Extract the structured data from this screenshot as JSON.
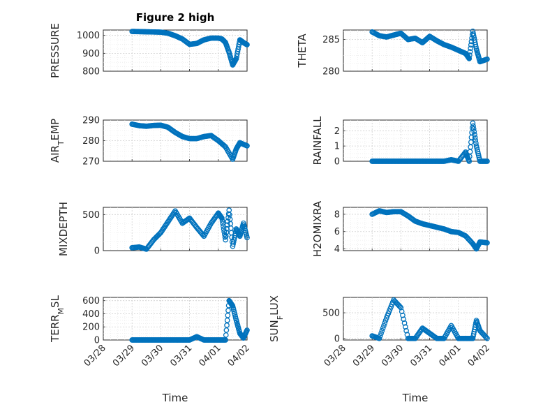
{
  "figure": {
    "title": "Figure 2 high",
    "x_ticks": [
      "03/28",
      "03/29",
      "03/30",
      "03/31",
      "04/01",
      "04/02"
    ],
    "xlabel": "Time",
    "marker_color": "#0072BD"
  },
  "chart_data": [
    {
      "type": "scatter",
      "name": "pressure",
      "ylabel": "PRESSURE",
      "ylabel_sub": [],
      "ylim": [
        800,
        1030
      ],
      "yticks": [
        800,
        900,
        1000
      ],
      "ytick_labels": [
        "800",
        "900",
        "1000"
      ],
      "show_xticklabels": false,
      "x": [
        "03/29 00:00",
        "03/29 06:00",
        "03/29 12:00",
        "03/29 18:00",
        "03/30 00:00",
        "03/30 06:00",
        "03/30 12:00",
        "03/30 18:00",
        "03/31 00:00",
        "03/31 06:00",
        "03/31 12:00",
        "03/31 18:00",
        "04/01 00:00",
        "04/01 03:00",
        "04/01 06:00",
        "04/01 09:00",
        "04/01 12:00",
        "04/01 15:00",
        "04/01 18:00",
        "04/01 21:00",
        "04/02 00:00"
      ],
      "y": [
        1022,
        1021,
        1020,
        1019,
        1018,
        1012,
        998,
        980,
        950,
        955,
        975,
        985,
        985,
        980,
        960,
        905,
        835,
        870,
        975,
        960,
        948
      ]
    },
    {
      "type": "scatter",
      "name": "theta",
      "ylabel": "THETA",
      "ylabel_sub": [],
      "ylim": [
        280,
        286.5
      ],
      "yticks": [
        280,
        285
      ],
      "ytick_labels": [
        "280",
        "285"
      ],
      "show_xticklabels": false,
      "x": [
        "03/29 00:00",
        "03/29 06:00",
        "03/29 12:00",
        "03/29 18:00",
        "03/30 00:00",
        "03/30 06:00",
        "03/30 12:00",
        "03/30 18:00",
        "03/31 00:00",
        "03/31 06:00",
        "03/31 12:00",
        "03/31 18:00",
        "04/01 00:00",
        "04/01 06:00",
        "04/01 09:00",
        "04/01 12:00",
        "04/01 15:00",
        "04/01 18:00",
        "04/02 00:00"
      ],
      "y": [
        286.2,
        285.6,
        285.4,
        285.7,
        286.0,
        285.0,
        285.2,
        284.5,
        285.5,
        284.8,
        284.2,
        283.8,
        283.3,
        282.8,
        282.0,
        286.3,
        283.5,
        281.5,
        281.9
      ]
    },
    {
      "type": "scatter",
      "name": "air-temp",
      "ylabel": "AIR",
      "ylabel_sub": [
        "T",
        "EMP"
      ],
      "ylim": [
        270,
        290
      ],
      "yticks": [
        270,
        280,
        290
      ],
      "ytick_labels": [
        "270",
        "280",
        "290"
      ],
      "show_xticklabels": false,
      "x": [
        "03/29 00:00",
        "03/29 06:00",
        "03/29 12:00",
        "03/29 18:00",
        "03/30 00:00",
        "03/30 06:00",
        "03/30 12:00",
        "03/30 18:00",
        "03/31 00:00",
        "03/31 06:00",
        "03/31 12:00",
        "03/31 18:00",
        "04/01 00:00",
        "04/01 06:00",
        "04/01 12:00",
        "04/01 15:00",
        "04/01 18:00",
        "04/02 00:00"
      ],
      "y": [
        288.0,
        287.3,
        287.0,
        287.4,
        287.5,
        286.5,
        284.0,
        282.0,
        281.0,
        281.0,
        282.0,
        282.5,
        280.0,
        277.0,
        271.0,
        276.0,
        279.0,
        277.5
      ]
    },
    {
      "type": "scatter",
      "name": "rainfall",
      "ylabel": "RAINFALL",
      "ylabel_sub": [],
      "ylim": [
        0,
        2.7
      ],
      "yticks": [
        0,
        1,
        2
      ],
      "ytick_labels": [
        "0",
        "1",
        "2"
      ],
      "show_xticklabels": false,
      "x": [
        "03/29 00:00",
        "03/29 06:00",
        "03/29 12:00",
        "03/29 18:00",
        "03/30 00:00",
        "03/30 06:00",
        "03/30 12:00",
        "03/30 18:00",
        "03/31 00:00",
        "03/31 06:00",
        "03/31 12:00",
        "03/31 18:00",
        "04/01 00:00",
        "04/01 06:00",
        "04/01 09:00",
        "04/01 12:00",
        "04/01 15:00",
        "04/01 18:00",
        "04/02 00:00"
      ],
      "y": [
        0,
        0,
        0,
        0,
        0,
        0,
        0,
        0,
        0,
        0,
        0,
        0.1,
        0,
        0.6,
        0,
        2.5,
        1.0,
        0,
        0
      ]
    },
    {
      "type": "scatter",
      "name": "mixdepth",
      "ylabel": "MIXDEPTH",
      "ylabel_sub": [],
      "ylim": [
        0,
        600
      ],
      "yticks": [
        0,
        500
      ],
      "ytick_labels": [
        "0",
        "500"
      ],
      "show_xticklabels": false,
      "x": [
        "03/29 00:00",
        "03/29 06:00",
        "03/29 12:00",
        "03/29 18:00",
        "03/30 00:00",
        "03/30 06:00",
        "03/30 12:00",
        "03/30 18:00",
        "03/31 00:00",
        "03/31 06:00",
        "03/31 12:00",
        "03/31 18:00",
        "04/01 00:00",
        "04/01 03:00",
        "04/01 06:00",
        "04/01 09:00",
        "04/01 12:00",
        "04/01 15:00",
        "04/01 18:00",
        "04/01 21:00",
        "04/02 00:00"
      ],
      "y": [
        40,
        50,
        20,
        150,
        250,
        400,
        550,
        380,
        450,
        320,
        200,
        380,
        520,
        450,
        150,
        560,
        60,
        300,
        200,
        380,
        180
      ]
    },
    {
      "type": "scatter",
      "name": "h2o-mixing-ratio",
      "ylabel": "H2OMIXRA",
      "ylabel_sub": [],
      "ylim": [
        3.8,
        8.8
      ],
      "yticks": [
        4,
        6,
        8
      ],
      "ytick_labels": [
        "4",
        "6",
        "8"
      ],
      "show_xticklabels": false,
      "x": [
        "03/29 00:00",
        "03/29 06:00",
        "03/29 12:00",
        "03/29 18:00",
        "03/30 00:00",
        "03/30 06:00",
        "03/30 12:00",
        "03/30 18:00",
        "03/31 00:00",
        "03/31 06:00",
        "03/31 12:00",
        "03/31 18:00",
        "04/01 00:00",
        "04/01 06:00",
        "04/01 12:00",
        "04/01 15:00",
        "04/01 18:00",
        "04/02 00:00"
      ],
      "y": [
        8.0,
        8.4,
        8.2,
        8.3,
        8.3,
        7.8,
        7.2,
        6.9,
        6.7,
        6.5,
        6.3,
        6.0,
        5.9,
        5.5,
        4.6,
        4.0,
        4.8,
        4.7
      ]
    },
    {
      "type": "scatter",
      "name": "terrain-msl",
      "ylabel": "TERR",
      "ylabel_sub": [
        "M",
        "SL"
      ],
      "ylim": [
        0,
        650
      ],
      "yticks": [
        0,
        200,
        400,
        600
      ],
      "ytick_labels": [
        "0",
        "200",
        "400",
        "600"
      ],
      "show_xticklabels": true,
      "x": [
        "03/29 00:00",
        "03/29 06:00",
        "03/29 12:00",
        "03/29 18:00",
        "03/30 00:00",
        "03/30 06:00",
        "03/30 12:00",
        "03/30 18:00",
        "03/31 00:00",
        "03/31 06:00",
        "03/31 12:00",
        "03/31 18:00",
        "04/01 00:00",
        "04/01 06:00",
        "04/01 09:00",
        "04/01 12:00",
        "04/01 15:00",
        "04/01 18:00",
        "04/01 21:00",
        "04/02 00:00"
      ],
      "y": [
        0,
        0,
        0,
        0,
        0,
        0,
        0,
        0,
        0,
        50,
        0,
        0,
        0,
        0,
        600,
        520,
        300,
        100,
        30,
        150
      ]
    },
    {
      "type": "scatter",
      "name": "sun-flux",
      "ylabel": "SUN",
      "ylabel_sub": [
        "F",
        "LUX"
      ],
      "ylim": [
        -30,
        800
      ],
      "yticks": [
        0,
        500
      ],
      "ytick_labels": [
        "0",
        "500"
      ],
      "show_xticklabels": true,
      "x": [
        "03/29 00:00",
        "03/29 06:00",
        "03/29 12:00",
        "03/29 18:00",
        "03/30 00:00",
        "03/30 06:00",
        "03/30 12:00",
        "03/30 18:00",
        "03/31 00:00",
        "03/31 06:00",
        "03/31 12:00",
        "03/31 18:00",
        "04/01 00:00",
        "04/01 06:00",
        "04/01 12:00",
        "04/01 15:00",
        "04/01 18:00",
        "04/02 00:00"
      ],
      "y": [
        50,
        0,
        400,
        750,
        600,
        0,
        0,
        200,
        100,
        0,
        0,
        250,
        0,
        0,
        0,
        350,
        150,
        0
      ]
    }
  ]
}
